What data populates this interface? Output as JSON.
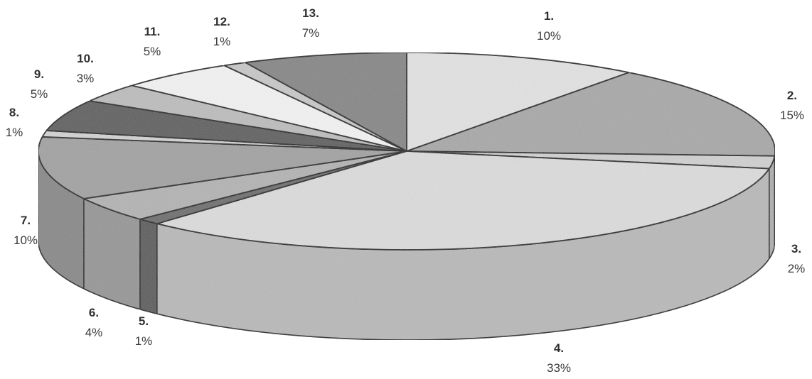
{
  "chart_data": {
    "type": "pie",
    "style": "3d",
    "legend": "none",
    "categories": [
      "1.",
      "2.",
      "3.",
      "4.",
      "5.",
      "6.",
      "7.",
      "8.",
      "9.",
      "10.",
      "11.",
      "12.",
      "13."
    ],
    "values": [
      10,
      15,
      2,
      33,
      1,
      4,
      10,
      1,
      5,
      3,
      5,
      1,
      7
    ],
    "value_labels": [
      "10%",
      "15%",
      "2%",
      "33%",
      "1%",
      "4%",
      "10%",
      "1%",
      "5%",
      "3%",
      "5%",
      "1%",
      "7%"
    ],
    "colors": [
      "#e2e2e2",
      "#a9a9a9",
      "#d0d0d0",
      "#dcdcdc",
      "#6e6e6e",
      "#b4b4b4",
      "#a3a3a3",
      "#d2d2d2",
      "#5f5f5f",
      "#bdbdbd",
      "#f2f2f2",
      "#c8c8c8",
      "#878787"
    ]
  }
}
